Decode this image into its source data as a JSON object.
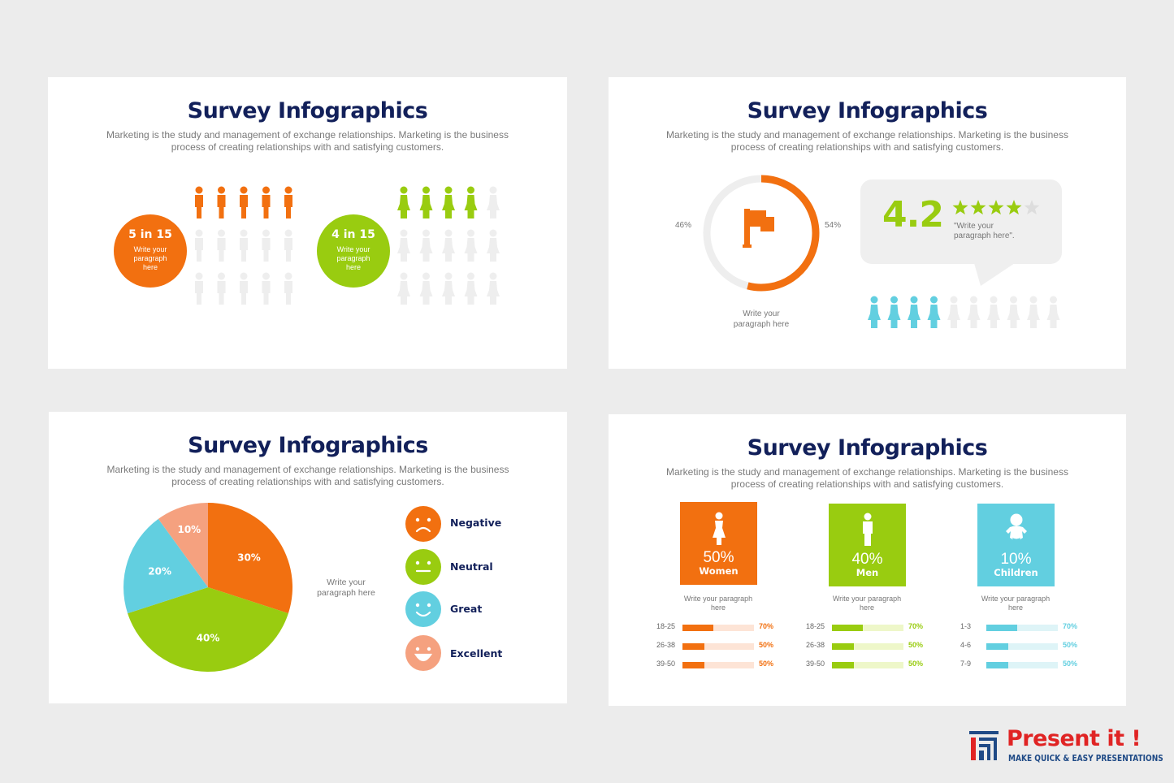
{
  "colors": {
    "orange": "#f27010",
    "green": "#99cc10",
    "blue": "#62cfe0",
    "salmon": "#f5a17f",
    "navy": "#12205a",
    "gray": "#eeeeee"
  },
  "slide1": {
    "title": "Survey Infographics",
    "subtitle_line1": "Marketing is the study and management of exchange relationships. Marketing is the business",
    "subtitle_line2": "process of creating relationships with and satisfying customers.",
    "stat_a": {
      "big": "5 in 15",
      "text": "Write your paragraph here",
      "highlighted": 5,
      "total": 15
    },
    "stat_b": {
      "big": "4 in 15",
      "text": "Write your paragraph here",
      "highlighted": 4,
      "total": 15
    }
  },
  "slide2": {
    "title": "Survey Infographics",
    "subtitle_line1": "Marketing is the study and management of exchange relationships. Marketing is the business",
    "subtitle_line2": "process of creating relationships with and satisfying customers.",
    "donut": {
      "left_label": "46%",
      "right_label": "54%",
      "value": 54,
      "caption": "Write your paragraph here"
    },
    "rating": {
      "score": "4.2",
      "stars_filled": 4,
      "stars_total": 5,
      "quote": "\"Write your paragraph here\"."
    },
    "people": {
      "highlighted": 4,
      "total": 10
    }
  },
  "slide3": {
    "title": "Survey Infographics",
    "subtitle_line1": "Marketing is the study and management of exchange relationships. Marketing is the business",
    "subtitle_line2": "process of creating relationships with and satisfying customers.",
    "caption": "Write your paragraph here",
    "legend": [
      {
        "label": "Negative",
        "face": "frown-face-icon"
      },
      {
        "label": "Neutral",
        "face": "neutral-face-icon"
      },
      {
        "label": "Great",
        "face": "smile-face-icon"
      },
      {
        "label": "Excellent",
        "face": "grin-face-icon"
      }
    ]
  },
  "chart_data": {
    "type": "pie",
    "categories": [
      "30%",
      "40%",
      "20%",
      "10%"
    ],
    "values": [
      30,
      40,
      20,
      10
    ],
    "slice_labels": [
      "30%",
      "40%",
      "20%",
      "10%"
    ]
  },
  "slide4": {
    "title": "Survey Infographics",
    "subtitle_line1": "Marketing is the study and management of exchange relationships. Marketing is the business",
    "subtitle_line2": "process of creating relationships with and satisfying customers.",
    "groups": [
      {
        "pct": "50%",
        "label": "Women",
        "icon": "woman-icon",
        "caption": "Write your paragraph here",
        "bars": [
          {
            "range": "18-25",
            "value": 70,
            "label": "70%"
          },
          {
            "range": "26-38",
            "value": 50,
            "label": "50%"
          },
          {
            "range": "39-50",
            "value": 50,
            "label": "50%"
          }
        ]
      },
      {
        "pct": "40%",
        "label": "Men",
        "icon": "man-icon",
        "caption": "Write your paragraph here",
        "bars": [
          {
            "range": "18-25",
            "value": 70,
            "label": "70%"
          },
          {
            "range": "26-38",
            "value": 50,
            "label": "50%"
          },
          {
            "range": "39-50",
            "value": 50,
            "label": "50%"
          }
        ]
      },
      {
        "pct": "10%",
        "label": "Children",
        "icon": "baby-icon",
        "caption": "Write your paragraph here",
        "bars": [
          {
            "range": "1-3",
            "value": 70,
            "label": "70%"
          },
          {
            "range": "4-6",
            "value": 50,
            "label": "50%"
          },
          {
            "range": "7-9",
            "value": 50,
            "label": "50%"
          }
        ]
      }
    ]
  },
  "brand": {
    "name": "Present it !",
    "tagline": "MAKE QUICK & EASY PRESENTATIONS"
  }
}
